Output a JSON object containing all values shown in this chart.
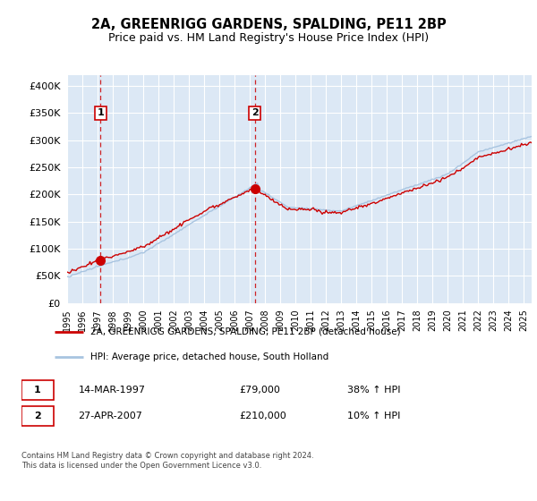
{
  "title": "2A, GREENRIGG GARDENS, SPALDING, PE11 2BP",
  "subtitle": "Price paid vs. HM Land Registry's House Price Index (HPI)",
  "legend_line1": "2A, GREENRIGG GARDENS, SPALDING, PE11 2BP (detached house)",
  "legend_line2": "HPI: Average price, detached house, South Holland",
  "sale1_date": "14-MAR-1997",
  "sale1_price": "£79,000",
  "sale1_hpi": "38% ↑ HPI",
  "sale1_year": 1997.2,
  "sale1_value": 79000,
  "sale2_date": "27-APR-2007",
  "sale2_price": "£210,000",
  "sale2_hpi": "10% ↑ HPI",
  "sale2_year": 2007.32,
  "sale2_value": 210000,
  "hpi_color": "#a8c4e0",
  "price_color": "#cc0000",
  "plot_bg_color": "#dce8f5",
  "grid_color": "#ffffff",
  "footer": "Contains HM Land Registry data © Crown copyright and database right 2024.\nThis data is licensed under the Open Government Licence v3.0.",
  "ylim": [
    0,
    420000
  ],
  "yticks": [
    0,
    50000,
    100000,
    150000,
    200000,
    250000,
    300000,
    350000,
    400000
  ],
  "xmin": 1995,
  "xmax": 2025.5
}
